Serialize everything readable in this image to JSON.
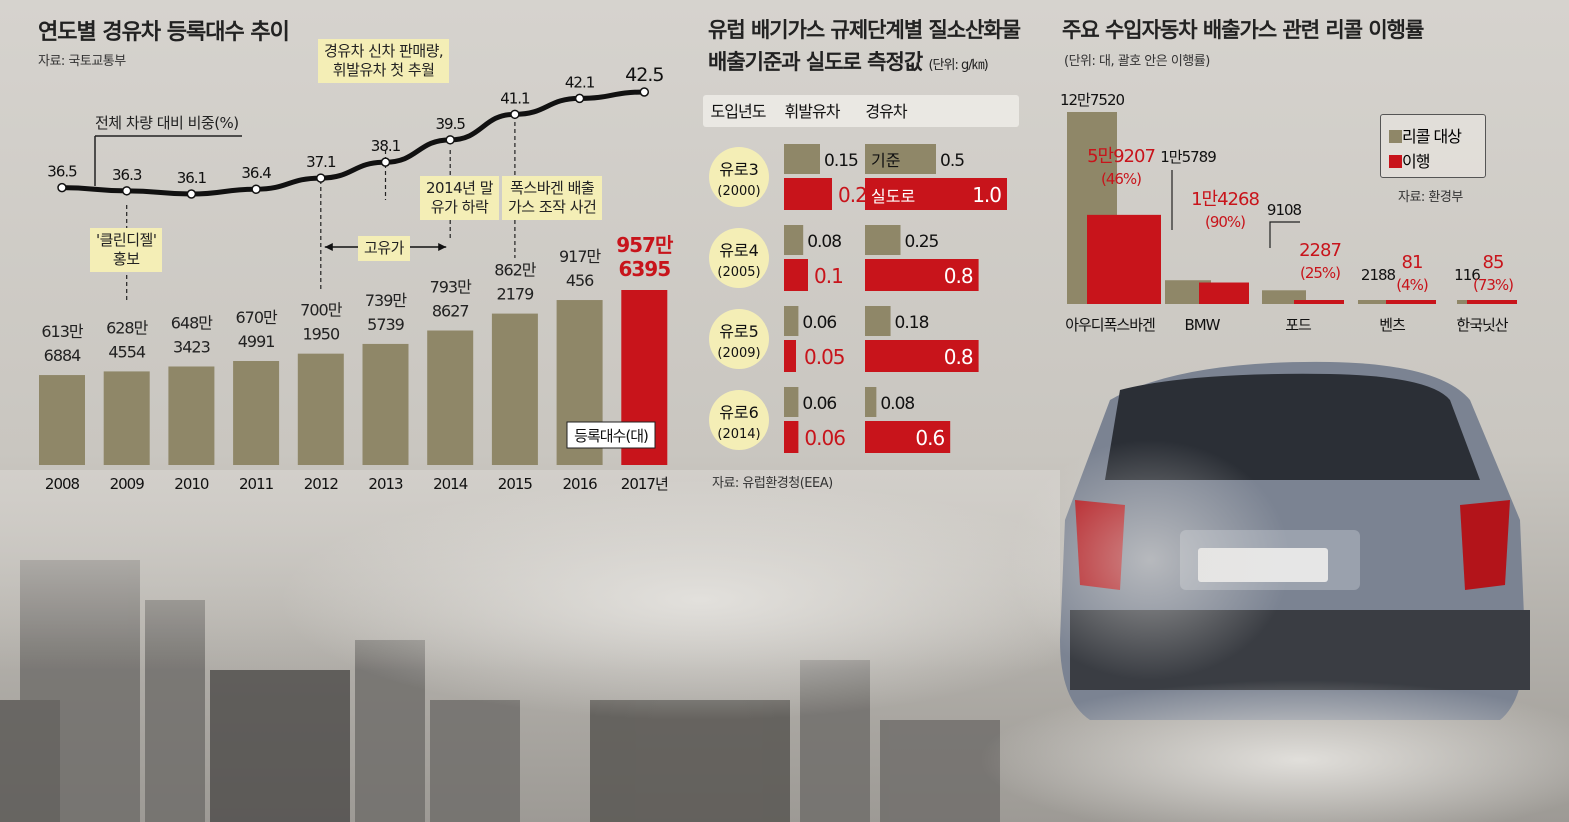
{
  "colors": {
    "olive": "#8f8768",
    "red": "#c8141b",
    "red_text": "#c8141b",
    "callout": "#f4eeb6",
    "line": "#111111"
  },
  "chart1": {
    "title": "연도별 경유차 등록대수 추이",
    "source": "자료: 국토교통부",
    "share_label": "전체 차량 대비 비중(%)",
    "legend_box": "등록대수(대)",
    "callouts": {
      "clean_diesel": [
        "'클린디젤'",
        "홍보"
      ],
      "sales_surpass": [
        "경유차 신차 판매량,",
        "휘발유차 첫 추월"
      ],
      "high_oil": "고유가",
      "oil_drop": [
        "2014년 말",
        "유가 하락"
      ],
      "vw_scandal": [
        "폭스바겐 배출",
        "가스 조작 사건"
      ]
    }
  },
  "chart2": {
    "title_line1": "유럽 배기가스 규제단계별 질소산화물",
    "title_line2": "배출기준과 실도로 측정값",
    "unit": "(단위: g/㎞)",
    "header": [
      "도입년도",
      "휘발유차",
      "경유차"
    ],
    "legend_standard": "기준",
    "legend_road": "실도로",
    "source": "자료: 유럽환경청(EEA)"
  },
  "chart3": {
    "title": "주요 수입자동차 배출가스 관련 리콜 이행률",
    "unit": "(단위: 대, 괄호 안은 이행률)",
    "legend": [
      "리콜 대상",
      "이행"
    ],
    "source": "자료: 환경부"
  },
  "chart_data": [
    {
      "type": "bar",
      "title": "연도별 경유차 등록대수 추이",
      "categories": [
        "2008",
        "2009",
        "2010",
        "2011",
        "2012",
        "2013",
        "2014",
        "2015",
        "2016",
        "2017년"
      ],
      "series": [
        {
          "name": "등록대수(대)",
          "values": [
            6136884,
            6284554,
            6483423,
            6704991,
            7001950,
            7395739,
            7938627,
            8622179,
            9170456,
            9576395
          ],
          "labels": [
            [
              "613만",
              "6884"
            ],
            [
              "628만",
              "4554"
            ],
            [
              "648만",
              "3423"
            ],
            [
              "670만",
              "4991"
            ],
            [
              "700만",
              "1950"
            ],
            [
              "739만",
              "5739"
            ],
            [
              "793만",
              "8627"
            ],
            [
              "862만",
              "2179"
            ],
            [
              "917만",
              "456"
            ],
            [
              "957만",
              "6395"
            ]
          ]
        },
        {
          "name": "전체 차량 대비 비중(%)",
          "values": [
            36.5,
            36.3,
            36.1,
            36.4,
            37.1,
            38.1,
            39.5,
            41.1,
            42.1,
            42.5
          ]
        }
      ]
    },
    {
      "type": "bar",
      "title": "유럽 배기가스 규제단계별 질소산화물 배출기준과 실도로 측정값",
      "categories": [
        "유로3 (2000)",
        "유로4 (2005)",
        "유로5 (2009)",
        "유로6 (2014)"
      ],
      "stages": [
        {
          "name": "유로3",
          "year": "(2000)"
        },
        {
          "name": "유로4",
          "year": "(2005)"
        },
        {
          "name": "유로5",
          "year": "(2009)"
        },
        {
          "name": "유로6",
          "year": "(2014)"
        }
      ],
      "series": [
        {
          "name": "휘발유차 기준",
          "values": [
            0.15,
            0.08,
            0.06,
            0.06
          ]
        },
        {
          "name": "휘발유차 실도로",
          "values": [
            0.2,
            0.1,
            0.05,
            0.06
          ]
        },
        {
          "name": "경유차 기준",
          "values": [
            0.5,
            0.25,
            0.18,
            0.08
          ]
        },
        {
          "name": "경유차 실도로",
          "values": [
            1.0,
            0.8,
            0.8,
            0.6
          ]
        }
      ],
      "value_labels": {
        "gas_std": [
          "0.15",
          "0.08",
          "0.06",
          "0.06"
        ],
        "gas_road": [
          "0.2",
          "0.1",
          "0.05",
          "0.06"
        ],
        "diesel_std": [
          "0.5",
          "0.25",
          "0.18",
          "0.08"
        ],
        "diesel_road": [
          "1.0",
          "0.8",
          "0.8",
          "0.6"
        ]
      }
    },
    {
      "type": "bar",
      "title": "주요 수입자동차 배출가스 관련 리콜 이행률",
      "categories": [
        "아우디폭스바겐",
        "BMW",
        "포드",
        "벤츠",
        "한국닛산"
      ],
      "series": [
        {
          "name": "리콜 대상",
          "values": [
            127520,
            15789,
            9108,
            2188,
            116
          ],
          "labels": [
            "12만7520",
            "1만5789",
            "9108",
            "2188",
            "116"
          ]
        },
        {
          "name": "이행",
          "values": [
            59207,
            14268,
            2287,
            81,
            85
          ],
          "labels": [
            "5만9207",
            "1만4268",
            "2287",
            "81",
            "85"
          ],
          "rates": [
            "(46%)",
            "(90%)",
            "(25%)",
            "(4%)",
            "(73%)"
          ]
        }
      ]
    }
  ]
}
